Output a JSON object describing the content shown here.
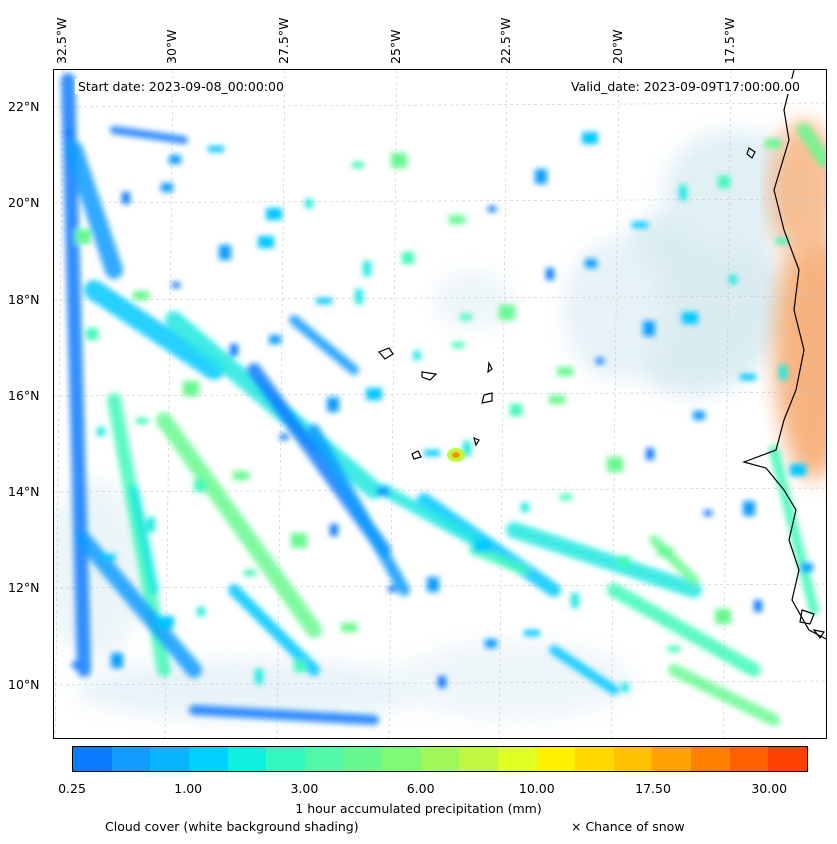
{
  "map": {
    "start_date": "Start date: 2023-09-08_00:00:00",
    "valid_date": "Valid_date: 2023-09-09T17:00:00.00",
    "longitude_labels": [
      "32.5°W",
      "30°W",
      "27.5°W",
      "25°W",
      "22.5°W",
      "20°W",
      "17.5°W"
    ],
    "latitude_labels": [
      "22°N",
      "20°N",
      "18°N",
      "16°N",
      "14°N",
      "12°N",
      "10°N"
    ],
    "colors": {
      "coastline": "#000000",
      "cloud": "#cfe8f0",
      "land_warm": "#f5a060",
      "grid": "#bbbbbb"
    }
  },
  "colorbar": {
    "title": "1 hour accumulated precipitation (mm)",
    "tick_labels": [
      "0.25",
      "1.00",
      "3.00",
      "6.00",
      "10.00",
      "17.50",
      "30.00"
    ],
    "colors": [
      "#0a7cff",
      "#109cff",
      "#06b4ff",
      "#00d0ff",
      "#10f0e0",
      "#30f8c0",
      "#50f8a8",
      "#68f890",
      "#80f878",
      "#a0f858",
      "#c0f840",
      "#e0ff20",
      "#fff000",
      "#ffd800",
      "#ffc000",
      "#ffa000",
      "#ff8000",
      "#ff6000",
      "#ff4000"
    ]
  },
  "legend": {
    "cloud_note": "Cloud cover (white background shading)",
    "snow_note": "× Chance of snow"
  }
}
